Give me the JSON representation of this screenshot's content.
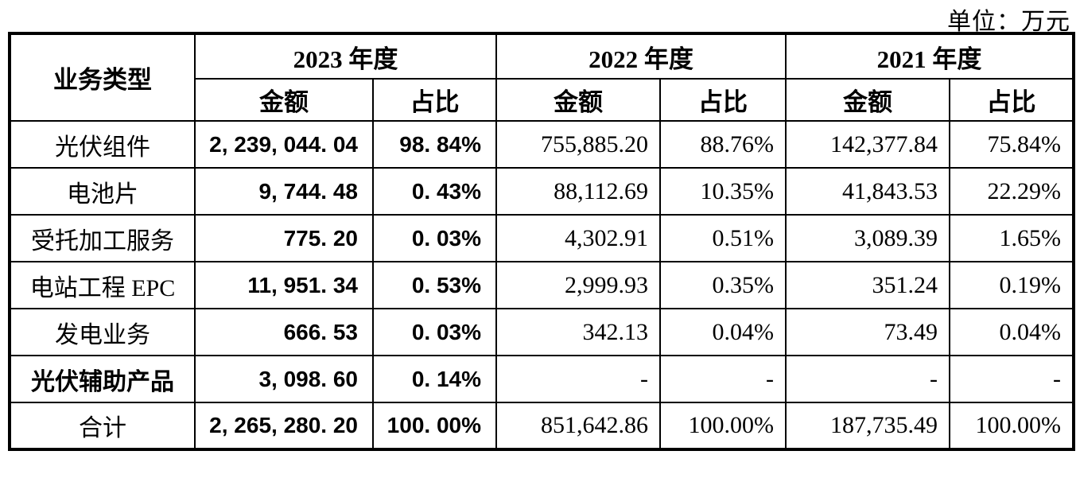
{
  "unit_label": "单位：万元",
  "table": {
    "corner_header": "业务类型",
    "year_groups": [
      {
        "label": "2023 年度"
      },
      {
        "label": "2022 年度"
      },
      {
        "label": "2021 年度"
      }
    ],
    "sub_headers": [
      "金额",
      "占比"
    ],
    "column_semantics": [
      "business-type",
      "amount-2023",
      "pct-2023",
      "amount-2022",
      "pct-2022",
      "amount-2021",
      "pct-2021"
    ],
    "rows": [
      {
        "label": "光伏组件",
        "bold_label": false,
        "is_total": false,
        "values": [
          "2, 239, 044. 04",
          "98. 84%",
          "755,885.20",
          "88.76%",
          "142,377.84",
          "75.84%"
        ]
      },
      {
        "label": "电池片",
        "bold_label": false,
        "is_total": false,
        "values": [
          "9, 744. 48",
          "0. 43%",
          "88,112.69",
          "10.35%",
          "41,843.53",
          "22.29%"
        ]
      },
      {
        "label": "受托加工服务",
        "bold_label": false,
        "is_total": false,
        "values": [
          "775. 20",
          "0. 03%",
          "4,302.91",
          "0.51%",
          "3,089.39",
          "1.65%"
        ]
      },
      {
        "label": "电站工程 EPC",
        "bold_label": false,
        "is_total": false,
        "values": [
          "11, 951. 34",
          "0. 53%",
          "2,999.93",
          "0.35%",
          "351.24",
          "0.19%"
        ]
      },
      {
        "label": "发电业务",
        "bold_label": false,
        "is_total": false,
        "values": [
          "666. 53",
          "0. 03%",
          "342.13",
          "0.04%",
          "73.49",
          "0.04%"
        ]
      },
      {
        "label": "光伏辅助产品",
        "bold_label": true,
        "is_total": false,
        "values": [
          "3, 098. 60",
          "0. 14%",
          "-",
          "-",
          "-",
          "-"
        ]
      },
      {
        "label": "合计",
        "bold_label": false,
        "is_total": true,
        "values": [
          "2, 265, 280. 20",
          "100. 00%",
          "851,642.86",
          "100.00%",
          "187,735.49",
          "100.00%"
        ]
      }
    ]
  }
}
